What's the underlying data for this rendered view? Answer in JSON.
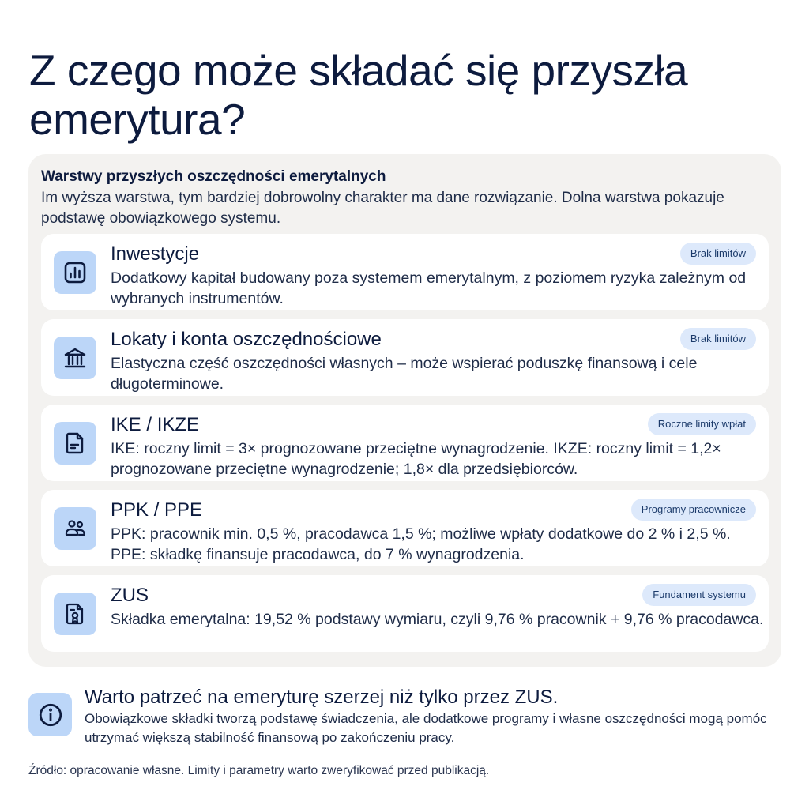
{
  "title": "Z czego może składać się przyszła emerytura?",
  "panel": {
    "heading": "Warstwy przyszłych oszczędności emerytalnych",
    "subtitle": "Im wyższa warstwa, tym bardziej dobrowolny charakter ma dane rozwiązanie. Dolna warstwa pokazuje podstawę obowiązkowego systemu."
  },
  "layers": [
    {
      "icon": "chart-icon",
      "title": "Inwestycje",
      "badge": "Brak limitów",
      "description": "Dodatkowy kapitał budowany poza systemem emerytalnym, z poziomem ryzyka zależnym od wybranych instrumentów."
    },
    {
      "icon": "bank-icon",
      "title": "Lokaty i konta oszczędnościowe",
      "badge": "Brak limitów",
      "description": "Elastyczna część oszczędności własnych – może wspierać poduszkę finansową i cele długoterminowe."
    },
    {
      "icon": "document-icon",
      "title": "IKE / IKZE",
      "badge": "Roczne limity wpłat",
      "description": "IKE: roczny limit = 3× prognozowane przeciętne wynagrodzenie. IKZE: roczny limit = 1,2× prognozowane przeciętne wynagrodzenie; 1,8× dla przedsiębiorców."
    },
    {
      "icon": "people-icon",
      "title": "PPK / PPE",
      "badge": "Programy pracownicze",
      "description": "PPK: pracownik min. 0,5 %, pracodawca 1,5 %; możliwe wpłaty dodatkowe do 2 % i 2,5 %. PPE: składkę finansuje pracodawca, do 7 % wynagrodzenia."
    },
    {
      "icon": "certificate-icon",
      "title": "ZUS",
      "badge": "Fundament systemu",
      "description": "Składka emerytalna: 19,52 % podstawy wymiaru, czyli 9,76 % pracownik + 9,76 % pracodawca."
    }
  ],
  "info": {
    "icon": "info-icon",
    "title": "Warto patrzeć na emeryturę szerzej niż tylko przez ZUS.",
    "text": "Obowiązkowe składki tworzą podstawę świadczenia, ale dodatkowe programy i własne oszczędności mogą pomóc utrzymać większą stabilność finansową po zakończeniu pracy."
  },
  "source": "Źródło: opracowanie własne. Limity i parametry warto zweryfikować przed publikacją.",
  "colors": {
    "text": "#0d1b3e",
    "panel": "#f3f2f0",
    "icon_bg": "#bcd6f8",
    "badge_bg": "#dde9fb"
  }
}
